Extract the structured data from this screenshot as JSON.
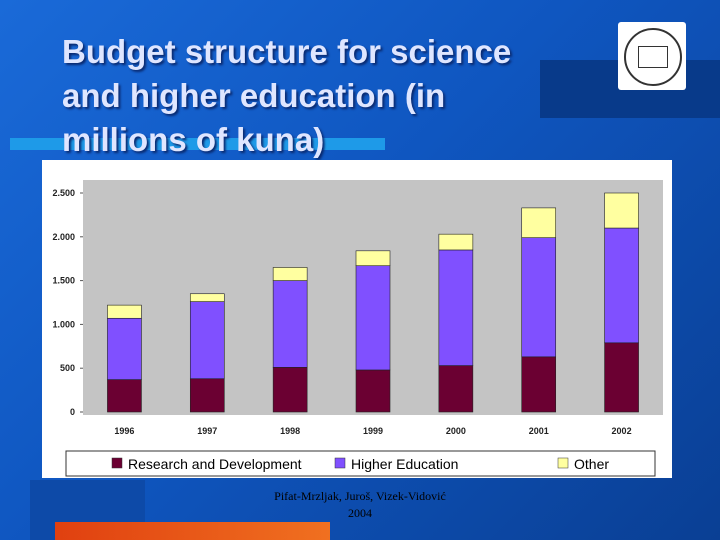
{
  "slide": {
    "title": "Budget structure for science and higher education (in millions of kuna)",
    "footer": {
      "authors": "Pifat-Mrzljak, Juroš, Vizek-Vidović",
      "year": "2004"
    }
  },
  "chart_data": {
    "type": "stacked-bar",
    "categories": [
      "1996",
      "1997",
      "1998",
      "1999",
      "2000",
      "2001",
      "2002"
    ],
    "series": [
      {
        "name": "Research and Development",
        "color": "#6b0032",
        "values": [
          370,
          380,
          510,
          480,
          530,
          630,
          790
        ]
      },
      {
        "name": "Higher Education",
        "color": "#8050ff",
        "values": [
          700,
          880,
          990,
          1190,
          1320,
          1360,
          1310
        ]
      },
      {
        "name": "Other",
        "color": "#ffffa0",
        "values": [
          150,
          90,
          150,
          170,
          180,
          340,
          400
        ]
      }
    ],
    "ylim": [
      0,
      2500
    ],
    "yticks": [
      0,
      500,
      {
        "value": 1000,
        "label": "1.000"
      },
      {
        "value": 1500,
        "label": "1.500"
      },
      {
        "value": 2000,
        "label": "2.000"
      },
      {
        "value": 2500,
        "label": "2.500"
      }
    ],
    "grid": false
  }
}
